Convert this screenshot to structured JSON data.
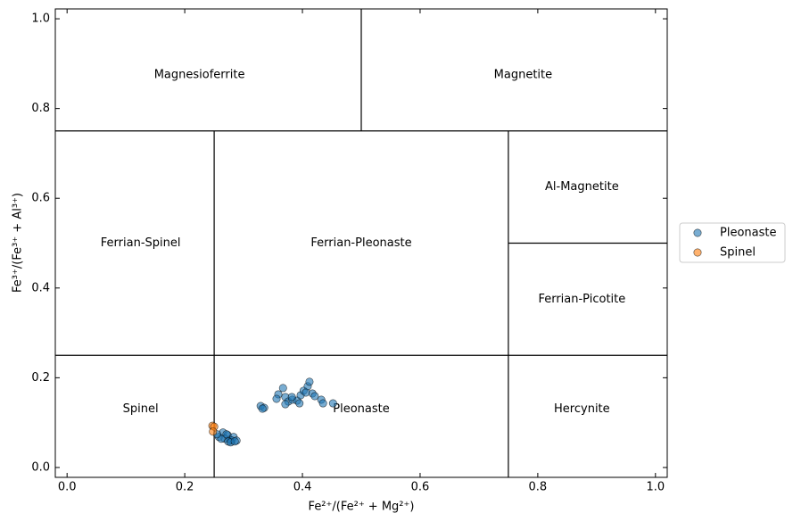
{
  "chart_data": {
    "type": "scatter",
    "x_label": "Fe²⁺/(Fe²⁺ + Mg²⁺)",
    "y_label": "Fe³⁺/(Fe³⁺ + Al³⁺)",
    "xlim": [
      -0.02,
      1.02
    ],
    "ylim": [
      -0.022,
      1.022
    ],
    "xticks": [
      {
        "value": 0,
        "label": "0.0"
      },
      0.2,
      0.4,
      0.6,
      0.8,
      {
        "value": 1,
        "label": "1.0"
      }
    ],
    "yticks": [
      {
        "value": 0,
        "label": "0.0"
      },
      0.2,
      0.4,
      0.6,
      0.8,
      {
        "value": 1,
        "label": "1.0"
      }
    ],
    "legend": "outside-right",
    "boundaries": [
      {
        "x": [
          -0.02,
          1.02
        ],
        "y": [
          0.75,
          0.75
        ]
      },
      {
        "x": [
          -0.02,
          1.02
        ],
        "y": [
          0.25,
          0.25
        ]
      },
      {
        "x": [
          0.5,
          0.5
        ],
        "y": [
          0.75,
          1.022
        ]
      },
      {
        "x": [
          0.25,
          0.25
        ],
        "y": [
          -0.022,
          0.75
        ]
      },
      {
        "x": [
          0.75,
          0.75
        ],
        "y": [
          -0.022,
          0.75
        ]
      },
      {
        "x": [
          0.75,
          1.02
        ],
        "y": [
          0.5,
          0.5
        ]
      }
    ],
    "regions": [
      {
        "label": "Magnesioferrite",
        "x": 0.225,
        "y": 0.875
      },
      {
        "label": "Magnetite",
        "x": 0.775,
        "y": 0.875
      },
      {
        "label": "Ferrian-Spinel",
        "x": 0.125,
        "y": 0.5
      },
      {
        "label": "Ferrian-Pleonaste",
        "x": 0.5,
        "y": 0.5
      },
      {
        "label": "Al-Magnetite",
        "x": 0.875,
        "y": 0.625
      },
      {
        "label": "Ferrian-Picotite",
        "x": 0.875,
        "y": 0.375
      },
      {
        "label": "Spinel",
        "x": 0.125,
        "y": 0.13
      },
      {
        "label": "Pleonaste",
        "x": 0.5,
        "y": 0.13
      },
      {
        "label": "Hercynite",
        "x": 0.875,
        "y": 0.13
      }
    ],
    "series": [
      {
        "name": "Pleonaste",
        "color": "#1f77b4",
        "x": [
          0.329,
          0.335,
          0.332,
          0.367,
          0.359,
          0.356,
          0.371,
          0.376,
          0.371,
          0.383,
          0.391,
          0.397,
          0.402,
          0.409,
          0.412,
          0.406,
          0.417,
          0.421,
          0.432,
          0.435,
          0.395,
          0.382,
          0.452,
          0.258,
          0.265,
          0.273,
          0.268,
          0.277,
          0.283,
          0.28,
          0.262,
          0.288,
          0.274,
          0.271,
          0.255,
          0.278,
          0.285
        ],
        "values": [
          0.137,
          0.133,
          0.131,
          0.177,
          0.163,
          0.153,
          0.157,
          0.147,
          0.141,
          0.151,
          0.149,
          0.161,
          0.171,
          0.181,
          0.191,
          0.167,
          0.165,
          0.159,
          0.151,
          0.143,
          0.143,
          0.157,
          0.143,
          0.068,
          0.078,
          0.072,
          0.064,
          0.062,
          0.068,
          0.06,
          0.064,
          0.06,
          0.058,
          0.074,
          0.074,
          0.056,
          0.058
        ]
      },
      {
        "name": "Spinel",
        "color": "#ff7f0e",
        "x": [
          0.247,
          0.25,
          0.248
        ],
        "values": [
          0.093,
          0.091,
          0.08
        ]
      }
    ]
  }
}
